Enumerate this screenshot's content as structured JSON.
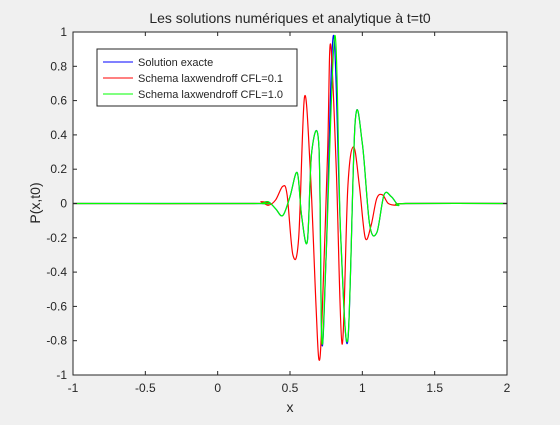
{
  "chart_data": {
    "type": "line",
    "title": "Les solutions numériques et analytique à t=t0",
    "xlabel": "x",
    "ylabel": "P(x,t0)",
    "xlim": [
      -1,
      2
    ],
    "ylim": [
      -1,
      1
    ],
    "xticks": [
      -1,
      -0.5,
      0,
      0.5,
      1,
      1.5,
      2
    ],
    "xtick_labels": [
      "-1",
      "-0.5",
      "0",
      "0.5",
      "1",
      "1.5",
      "2"
    ],
    "yticks": [
      -1,
      -0.8,
      -0.6,
      -0.4,
      -0.2,
      0,
      0.2,
      0.4,
      0.6,
      0.8,
      1
    ],
    "ytick_labels": [
      "-1",
      "-0.8",
      "-0.6",
      "-0.4",
      "-0.2",
      "0",
      "0.2",
      "0.4",
      "0.6",
      "0.8",
      "1"
    ],
    "grid": false,
    "legend_position": "top-left",
    "series": [
      {
        "name": "Solution exacte",
        "color": "#0000ff",
        "x": [
          -1,
          0.25,
          0.3,
          0.35,
          0.4,
          0.45,
          0.5,
          0.55,
          0.58,
          0.62,
          0.65,
          0.7,
          0.72,
          0.75,
          0.8,
          0.85,
          0.9,
          0.95,
          1.0,
          1.05,
          1.1,
          1.15,
          1.2,
          1.25,
          1.3,
          2
        ],
        "y": [
          0,
          0,
          0,
          0.01,
          -0.03,
          -0.07,
          0.04,
          0.18,
          -0.07,
          -0.22,
          0.3,
          0.33,
          -0.81,
          -0.3,
          0.98,
          -0.18,
          -0.8,
          0.47,
          0.35,
          -0.12,
          -0.17,
          0.05,
          0.04,
          -0.01,
          0,
          0
        ]
      },
      {
        "name": "Schema laxwendroff CFL=0.1",
        "color": "#ff0000",
        "x": [
          -1,
          0.25,
          0.3,
          0.35,
          0.4,
          0.45,
          0.48,
          0.52,
          0.56,
          0.6,
          0.64,
          0.68,
          0.7,
          0.72,
          0.76,
          0.78,
          0.82,
          0.86,
          0.9,
          0.94,
          0.98,
          1.02,
          1.06,
          1.1,
          1.14,
          1.18,
          1.24,
          1.3,
          2
        ],
        "y": [
          0,
          0,
          0.01,
          -0.01,
          0.02,
          0.1,
          0.05,
          -0.3,
          -0.2,
          0.62,
          0.2,
          -0.6,
          -0.91,
          -0.7,
          0.3,
          0.93,
          0.2,
          -0.82,
          0.1,
          0.33,
          0.1,
          -0.2,
          -0.13,
          0.03,
          0.05,
          0,
          -0.01,
          0,
          0
        ]
      },
      {
        "name": "Schema laxwendroff CFL=1.0",
        "color": "#00ff00",
        "x": [
          -1,
          0.25,
          0.3,
          0.35,
          0.4,
          0.45,
          0.5,
          0.55,
          0.58,
          0.62,
          0.65,
          0.7,
          0.72,
          0.75,
          0.81,
          0.85,
          0.9,
          0.95,
          1.0,
          1.05,
          1.1,
          1.15,
          1.2,
          1.25,
          1.3,
          2
        ],
        "y": [
          0,
          0,
          0,
          0.01,
          -0.03,
          -0.07,
          0.04,
          0.18,
          -0.07,
          -0.22,
          0.3,
          0.33,
          -0.8,
          -0.3,
          0.98,
          -0.18,
          -0.79,
          0.47,
          0.35,
          -0.12,
          -0.17,
          0.05,
          0.04,
          -0.01,
          0,
          0
        ]
      }
    ]
  }
}
